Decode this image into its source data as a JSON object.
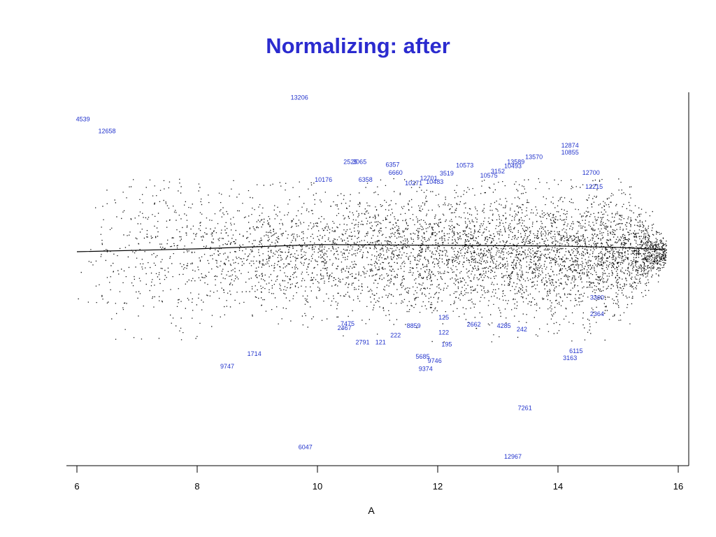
{
  "title": "Normalizing: after",
  "chart_data": {
    "type": "scatter",
    "xlabel": "A",
    "ylabel": "",
    "xlim": [
      6,
      16
    ],
    "x_ticks": [
      "6",
      "8",
      "10",
      "12",
      "14",
      "16"
    ],
    "lowess_line": [
      [
        6.0,
        0.02
      ],
      [
        8.0,
        0.06
      ],
      [
        10.0,
        0.12
      ],
      [
        12.0,
        0.11
      ],
      [
        14.0,
        0.1
      ],
      [
        15.0,
        0.08
      ],
      [
        15.7,
        0.05
      ]
    ],
    "labeled_points": [
      {
        "label": "13206",
        "x": 9.7,
        "y": 2.15
      },
      {
        "label": "4539",
        "x": 6.1,
        "y": 1.85
      },
      {
        "label": "12658",
        "x": 6.5,
        "y": 1.68
      },
      {
        "label": "12874",
        "x": 14.2,
        "y": 1.48
      },
      {
        "label": "10855",
        "x": 14.2,
        "y": 1.38
      },
      {
        "label": "13570",
        "x": 13.6,
        "y": 1.32
      },
      {
        "label": "13589",
        "x": 13.3,
        "y": 1.25
      },
      {
        "label": "10493",
        "x": 13.25,
        "y": 1.19
      },
      {
        "label": "10573",
        "x": 12.45,
        "y": 1.2
      },
      {
        "label": "3152",
        "x": 13.0,
        "y": 1.12
      },
      {
        "label": "12700",
        "x": 14.55,
        "y": 1.1
      },
      {
        "label": "2525",
        "x": 10.55,
        "y": 1.25
      },
      {
        "label": "3065",
        "x": 10.7,
        "y": 1.25
      },
      {
        "label": "6357",
        "x": 11.25,
        "y": 1.21
      },
      {
        "label": "6660",
        "x": 11.3,
        "y": 1.1
      },
      {
        "label": "3519",
        "x": 12.15,
        "y": 1.09
      },
      {
        "label": "10575",
        "x": 12.85,
        "y": 1.06
      },
      {
        "label": "10176",
        "x": 10.1,
        "y": 1.0
      },
      {
        "label": "6358",
        "x": 10.8,
        "y": 1.0
      },
      {
        "label": "12701",
        "x": 11.85,
        "y": 1.02
      },
      {
        "label": "10271",
        "x": 11.6,
        "y": 0.95
      },
      {
        "label": "10483",
        "x": 11.95,
        "y": 0.97
      },
      {
        "label": "12215",
        "x": 14.6,
        "y": 0.9
      },
      {
        "label": "3360",
        "x": 14.65,
        "y": -0.65
      },
      {
        "label": "2364",
        "x": 14.65,
        "y": -0.88
      },
      {
        "label": "7475",
        "x": 10.5,
        "y": -1.02
      },
      {
        "label": "2467",
        "x": 10.45,
        "y": -1.08
      },
      {
        "label": "8859",
        "x": 11.6,
        "y": -1.05
      },
      {
        "label": "125",
        "x": 12.1,
        "y": -0.93
      },
      {
        "label": "2662",
        "x": 12.6,
        "y": -1.03
      },
      {
        "label": "4285",
        "x": 13.1,
        "y": -1.05
      },
      {
        "label": "242",
        "x": 13.4,
        "y": -1.1
      },
      {
        "label": "122",
        "x": 12.1,
        "y": -1.14
      },
      {
        "label": "222",
        "x": 11.3,
        "y": -1.18
      },
      {
        "label": "2791",
        "x": 10.75,
        "y": -1.28
      },
      {
        "label": "121",
        "x": 11.05,
        "y": -1.28
      },
      {
        "label": "195",
        "x": 12.15,
        "y": -1.31
      },
      {
        "label": "1714",
        "x": 8.95,
        "y": -1.44
      },
      {
        "label": "9747",
        "x": 8.5,
        "y": -1.62
      },
      {
        "label": "5685",
        "x": 11.75,
        "y": -1.48
      },
      {
        "label": "9746",
        "x": 11.95,
        "y": -1.54
      },
      {
        "label": "9374",
        "x": 11.8,
        "y": -1.65
      },
      {
        "label": "6115",
        "x": 14.3,
        "y": -1.4
      },
      {
        "label": "3163",
        "x": 14.2,
        "y": -1.5
      },
      {
        "label": "7261",
        "x": 13.45,
        "y": -2.2
      },
      {
        "label": "6047",
        "x": 9.8,
        "y": -2.75
      },
      {
        "label": "12967",
        "x": 13.25,
        "y": -2.88
      }
    ]
  }
}
